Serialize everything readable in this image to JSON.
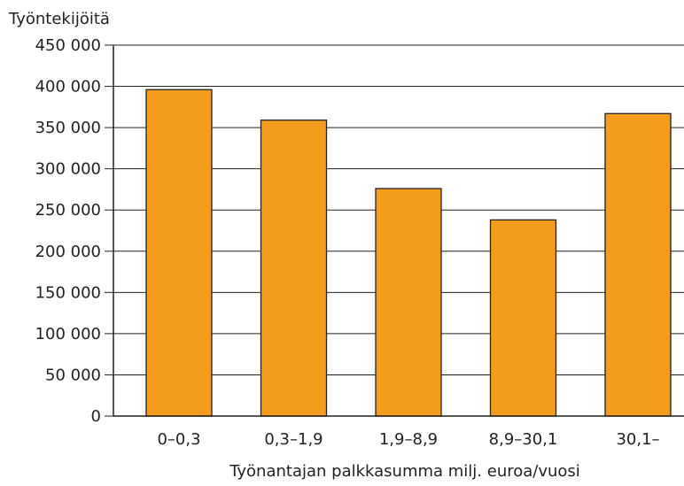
{
  "chart_data": {
    "type": "bar",
    "ylabel": "Työntekijöitä",
    "xlabel": "Työnantajan palkkasumma milj. euroa/vuosi",
    "categories": [
      "0–0,3",
      "0,3–1,9",
      "1,9–8,9",
      "8,9–30,1",
      "30,1–"
    ],
    "values": [
      396000,
      359000,
      276000,
      238000,
      367000
    ],
    "ylim": [
      0,
      450000
    ],
    "yticks": [
      0,
      50000,
      100000,
      150000,
      200000,
      250000,
      300000,
      350000,
      400000,
      450000
    ],
    "ytick_labels": [
      "0",
      "50 000",
      "100 000",
      "150 000",
      "200 000",
      "250 000",
      "300 000",
      "350 000",
      "400 000",
      "450 000"
    ],
    "grid": true,
    "bar_color": "#f59c1e",
    "bar_edge_color": "#231f20"
  }
}
